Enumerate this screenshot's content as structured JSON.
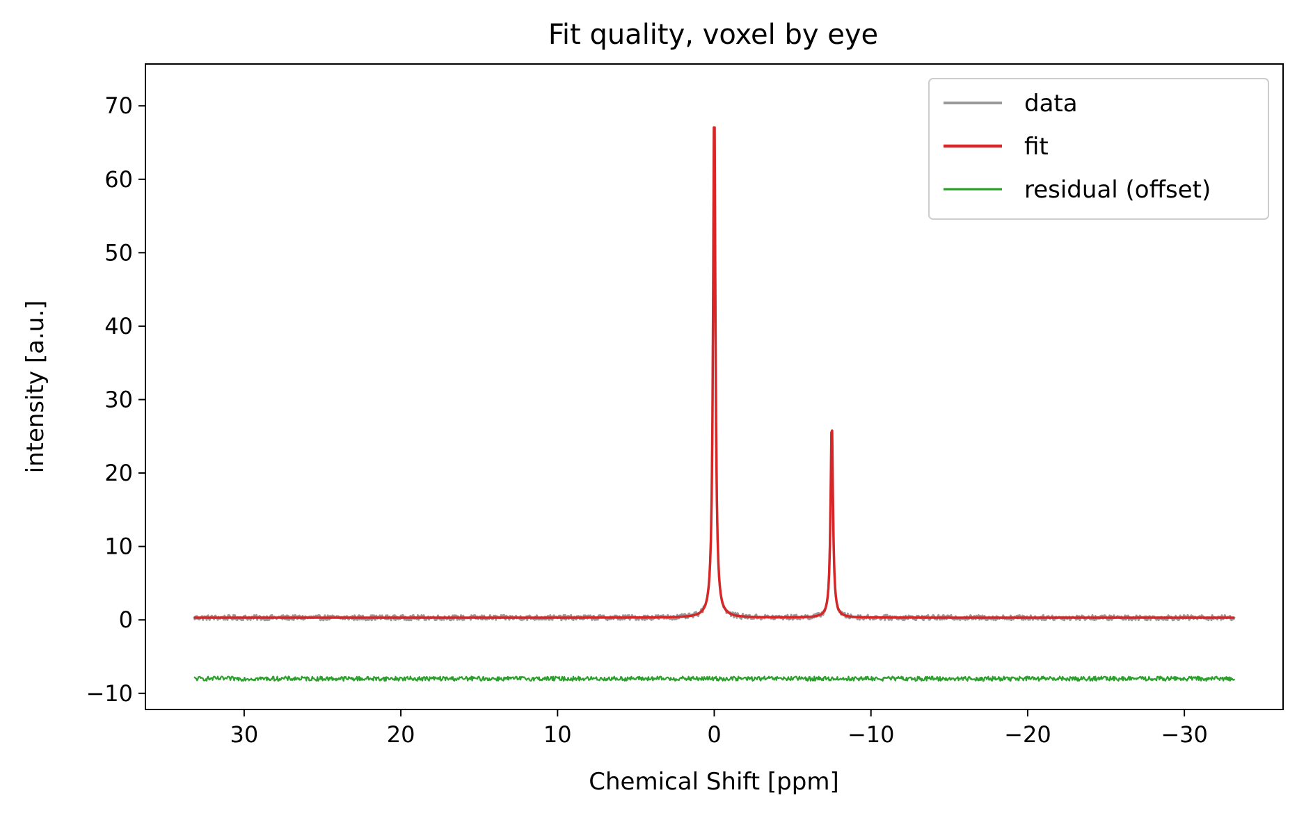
{
  "chart_data": {
    "type": "line",
    "title": "Fit quality, voxel by eye",
    "xlabel": "Chemical Shift [ppm]",
    "ylabel": "intensity [a.u.]",
    "xlim": [
      36.3,
      -36.3
    ],
    "ylim": [
      -12.2,
      75.7
    ],
    "x_ticks": [
      30,
      20,
      10,
      0,
      -10,
      -20,
      -30
    ],
    "x_tick_labels": [
      "30",
      "20",
      "10",
      "0",
      "−10",
      "−20",
      "−30"
    ],
    "y_ticks": [
      -10,
      0,
      10,
      20,
      30,
      40,
      50,
      60,
      70
    ],
    "y_tick_labels": [
      "−10",
      "0",
      "10",
      "20",
      "30",
      "40",
      "50",
      "60",
      "70"
    ],
    "x_range": [
      33.2,
      -33.2
    ],
    "grid": false,
    "legend_position": "top-right",
    "series": [
      {
        "name": "data",
        "color": "#999999",
        "baseline": 0.3,
        "noise_amplitude": 0.35,
        "peaks": [
          {
            "center": 0.0,
            "height": 71.4,
            "hwhm": 0.09
          },
          {
            "center": -7.5,
            "height": 27.1,
            "hwhm": 0.09
          }
        ]
      },
      {
        "name": "fit",
        "color": "#d62728",
        "baseline": 0.3,
        "peaks": [
          {
            "center": 0.0,
            "height": 71.4,
            "hwhm": 0.09
          },
          {
            "center": -7.5,
            "height": 27.1,
            "hwhm": 0.09
          }
        ]
      },
      {
        "name": "residual (offset)",
        "color": "#2ca02c",
        "baseline": -8.0,
        "noise_amplitude": 0.3
      }
    ]
  }
}
